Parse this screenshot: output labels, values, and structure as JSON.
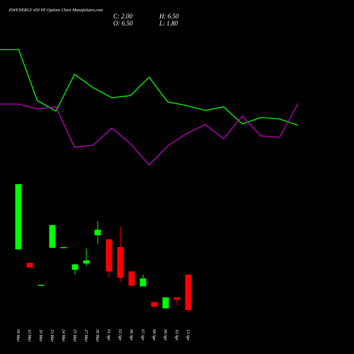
{
  "chart_data": [
    {
      "type": "line",
      "title": "JSWENERGY 450 PE Options Chart MunafaSutra.com",
      "x": [
        0,
        1,
        2,
        3,
        4,
        5,
        6,
        7,
        8,
        9,
        10,
        11,
        12,
        13,
        14,
        15,
        16
      ],
      "xlim": [
        0,
        19
      ],
      "ylim": [
        0,
        250
      ],
      "series": [
        {
          "color": "#00ff00",
          "values": [
            180,
            180,
            108,
            93,
            145,
            126,
            112,
            115,
            141,
            106,
            101,
            94,
            99,
            75,
            84,
            82,
            73
          ]
        },
        {
          "color": "#c000c0",
          "values": [
            103,
            103,
            96,
            99,
            42,
            45,
            69,
            47,
            17,
            44,
            61,
            74,
            54,
            86,
            58,
            56,
            104
          ]
        }
      ]
    },
    {
      "type": "candlestick",
      "info": [
        "C: 2.00",
        "H: 6.50",
        "O: 6.50",
        "L: 1.80"
      ],
      "categories": [
        "09 Mar",
        "10 Mar",
        "20 Mar",
        "23 Mar",
        "24 Mar",
        "25 Mar",
        "27 Mar",
        "30 Mar",
        "01 Apr",
        "02 Apr",
        "06 Apr",
        "07 Apr",
        "08 Apr",
        "09 Apr",
        "10 Apr",
        "13 Apr"
      ],
      "open": [
        9.7,
        8.0,
        5.1,
        9.9,
        9.9,
        7.1,
        7.9,
        11.5,
        11.0,
        10.0,
        6.9,
        5.0,
        3.0,
        2.2,
        3.6,
        6.5
      ],
      "high": [
        18.0,
        8.0,
        5.2,
        12.8,
        10.0,
        7.8,
        9.8,
        13.3,
        11.0,
        12.6,
        7.0,
        6.5,
        3.0,
        3.6,
        3.6,
        6.5
      ],
      "low": [
        9.7,
        7.4,
        5.1,
        9.9,
        9.9,
        6.5,
        7.6,
        10.4,
        6.1,
        5.6,
        5.0,
        5.0,
        2.4,
        2.2,
        2.6,
        1.8
      ],
      "close": [
        18.0,
        7.4,
        5.2,
        12.8,
        10.0,
        7.8,
        8.3,
        12.2,
        6.9,
        6.1,
        5.1,
        6.0,
        2.4,
        3.6,
        3.3,
        2.0
      ],
      "up_color": "#00ff00",
      "down_color": "#ff0000",
      "ylim": [
        0,
        19
      ]
    }
  ]
}
